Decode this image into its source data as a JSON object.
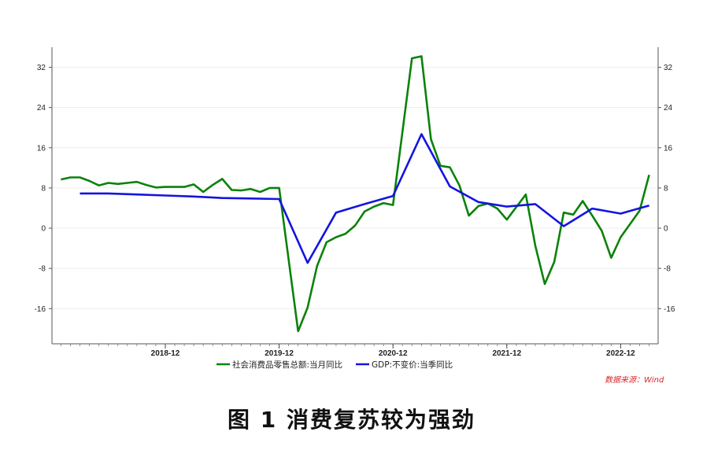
{
  "chart_data": {
    "type": "line",
    "caption": "图 1   消费复苏较为强劲",
    "source": "数据来源：Wind",
    "ylim": [
      -23,
      36
    ],
    "yticks": [
      -16,
      -8,
      0,
      8,
      16,
      24,
      32
    ],
    "grid": true,
    "legend_position": "bottom",
    "x_start": "2018-01",
    "x_end": "2023-03",
    "x_ticks": [
      "2018-12",
      "2019-12",
      "2020-12",
      "2021-12",
      "2022-12"
    ],
    "series": [
      {
        "name": "社会消费品零售总额:当月同比",
        "color": "#0a820a",
        "points": [
          [
            "2018-01",
            9.7
          ],
          [
            "2018-02",
            10.1
          ],
          [
            "2018-03",
            10.1
          ],
          [
            "2018-04",
            9.4
          ],
          [
            "2018-05",
            8.5
          ],
          [
            "2018-06",
            9.0
          ],
          [
            "2018-07",
            8.8
          ],
          [
            "2018-08",
            9.0
          ],
          [
            "2018-09",
            9.2
          ],
          [
            "2018-10",
            8.6
          ],
          [
            "2018-11",
            8.1
          ],
          [
            "2018-12",
            8.2
          ],
          [
            "2019-01",
            8.2
          ],
          [
            "2019-02",
            8.2
          ],
          [
            "2019-03",
            8.7
          ],
          [
            "2019-04",
            7.2
          ],
          [
            "2019-05",
            8.6
          ],
          [
            "2019-06",
            9.8
          ],
          [
            "2019-07",
            7.6
          ],
          [
            "2019-08",
            7.5
          ],
          [
            "2019-09",
            7.8
          ],
          [
            "2019-10",
            7.2
          ],
          [
            "2019-11",
            8.0
          ],
          [
            "2019-12",
            8.0
          ],
          [
            "2020-02",
            -20.5
          ],
          [
            "2020-03",
            -15.8
          ],
          [
            "2020-04",
            -7.5
          ],
          [
            "2020-05",
            -2.8
          ],
          [
            "2020-06",
            -1.8
          ],
          [
            "2020-07",
            -1.1
          ],
          [
            "2020-08",
            0.5
          ],
          [
            "2020-09",
            3.3
          ],
          [
            "2020-10",
            4.3
          ],
          [
            "2020-11",
            5.0
          ],
          [
            "2020-12",
            4.6
          ],
          [
            "2021-02",
            33.8
          ],
          [
            "2021-03",
            34.2
          ],
          [
            "2021-04",
            17.7
          ],
          [
            "2021-05",
            12.4
          ],
          [
            "2021-06",
            12.1
          ],
          [
            "2021-07",
            8.5
          ],
          [
            "2021-08",
            2.5
          ],
          [
            "2021-09",
            4.4
          ],
          [
            "2021-10",
            4.9
          ],
          [
            "2021-11",
            3.9
          ],
          [
            "2021-12",
            1.7
          ],
          [
            "2022-02",
            6.7
          ],
          [
            "2022-03",
            -3.5
          ],
          [
            "2022-04",
            -11.1
          ],
          [
            "2022-05",
            -6.7
          ],
          [
            "2022-06",
            3.1
          ],
          [
            "2022-07",
            2.7
          ],
          [
            "2022-08",
            5.4
          ],
          [
            "2022-09",
            2.5
          ],
          [
            "2022-10",
            -0.5
          ],
          [
            "2022-11",
            -5.9
          ],
          [
            "2022-12",
            -1.8
          ],
          [
            "2023-02",
            3.5
          ],
          [
            "2023-03",
            10.6
          ]
        ]
      },
      {
        "name": "GDP:不变价:当季同比",
        "color": "#1414e0",
        "points": [
          [
            "2018-03",
            6.9
          ],
          [
            "2018-06",
            6.9
          ],
          [
            "2018-09",
            6.7
          ],
          [
            "2018-12",
            6.5
          ],
          [
            "2019-03",
            6.3
          ],
          [
            "2019-06",
            6.0
          ],
          [
            "2019-09",
            5.9
          ],
          [
            "2019-12",
            5.8
          ],
          [
            "2020-03",
            -6.9
          ],
          [
            "2020-06",
            3.1
          ],
          [
            "2020-09",
            4.8
          ],
          [
            "2020-12",
            6.4
          ],
          [
            "2021-03",
            18.7
          ],
          [
            "2021-06",
            8.3
          ],
          [
            "2021-09",
            5.2
          ],
          [
            "2021-12",
            4.3
          ],
          [
            "2022-03",
            4.8
          ],
          [
            "2022-06",
            0.4
          ],
          [
            "2022-09",
            3.9
          ],
          [
            "2022-12",
            2.9
          ],
          [
            "2023-03",
            4.5
          ]
        ]
      }
    ]
  }
}
